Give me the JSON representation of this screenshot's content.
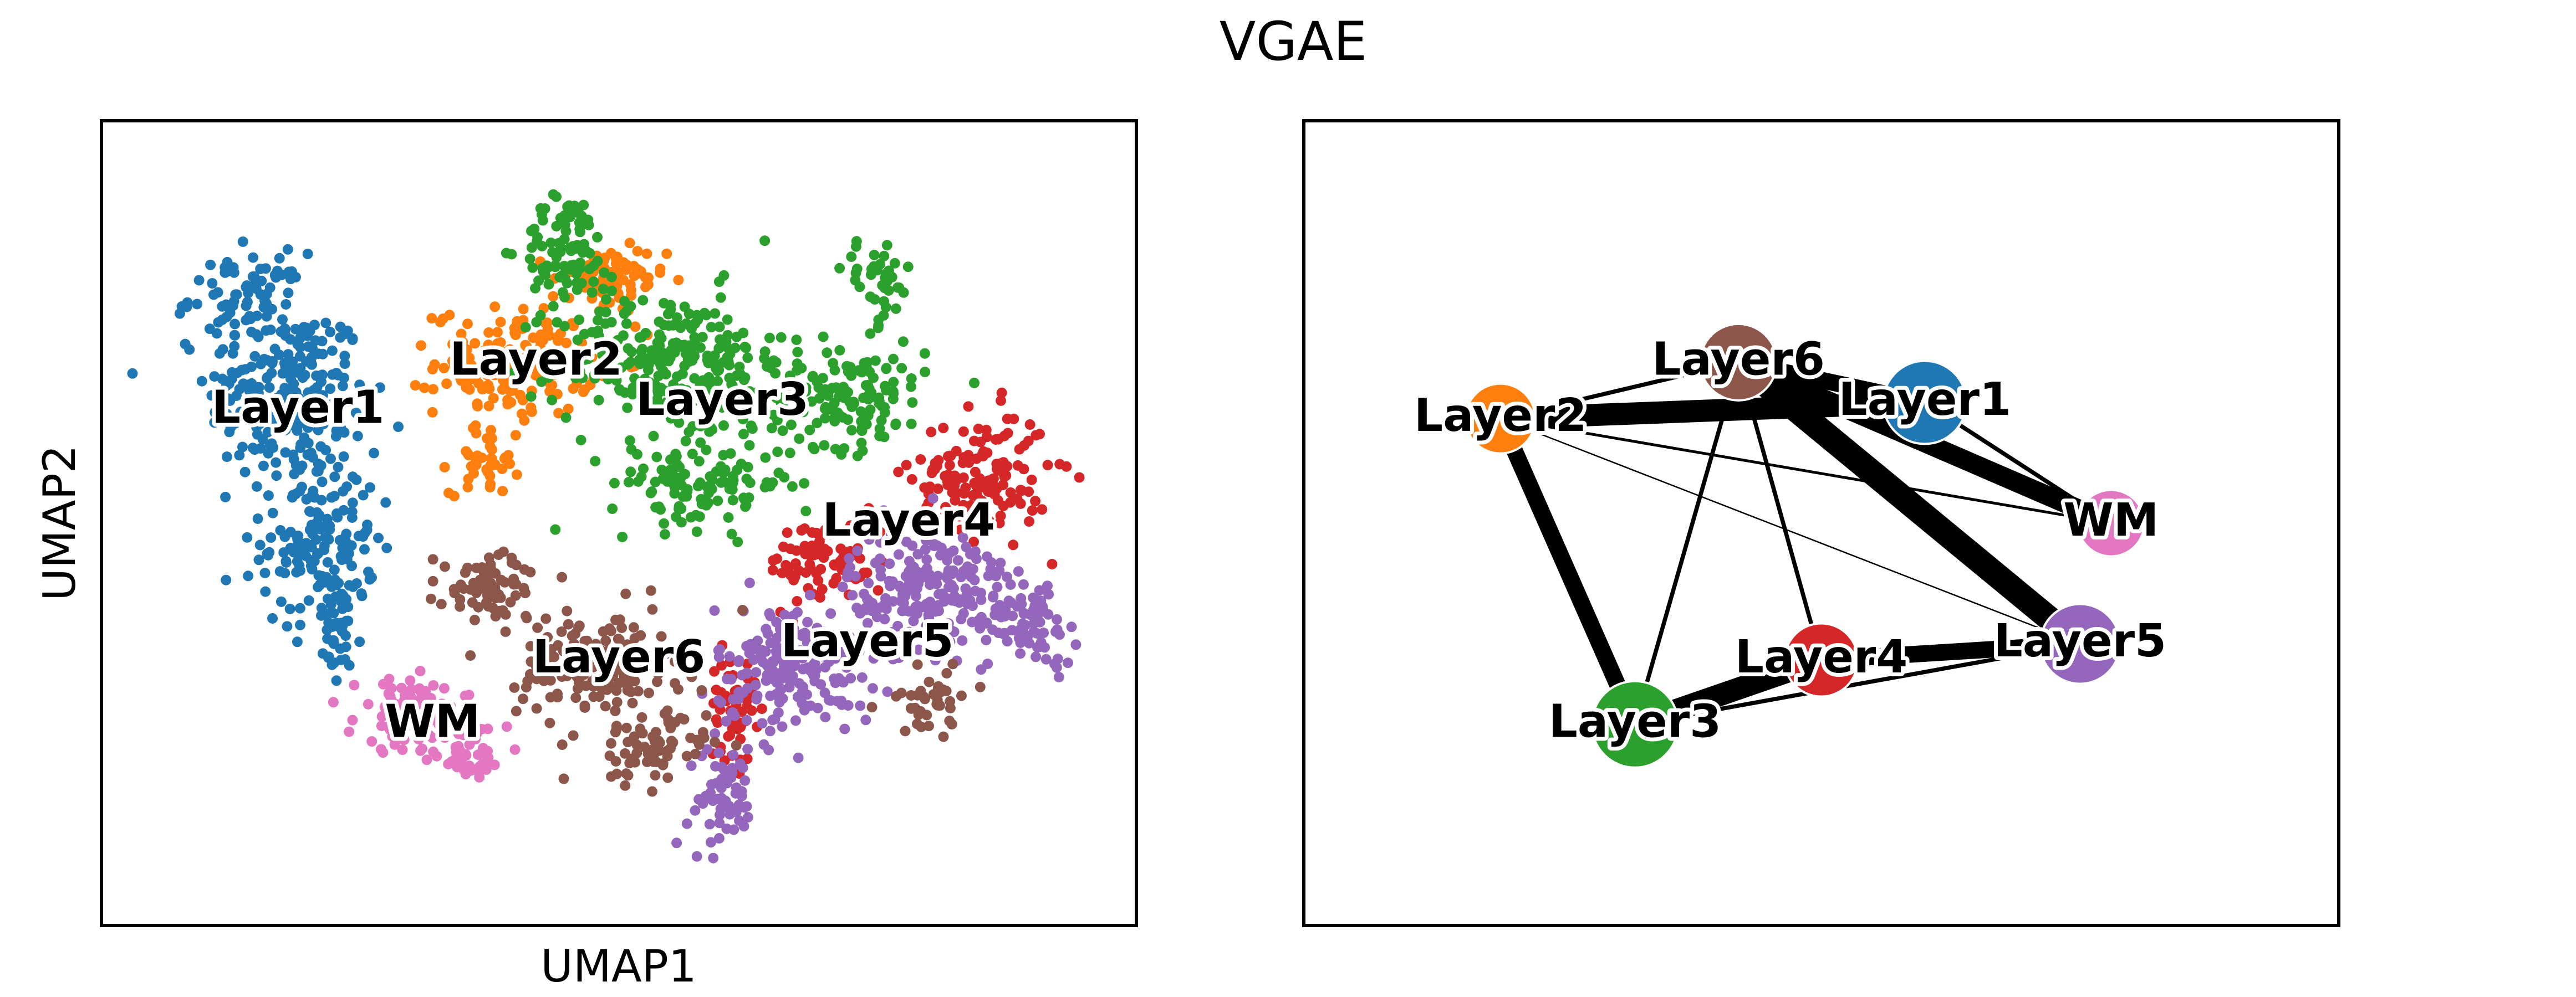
{
  "figure": {
    "title": "VGAE"
  },
  "chart_data": [
    {
      "type": "scatter",
      "xlabel": "UMAP1",
      "ylabel": "UMAP2",
      "grid": false,
      "ticks": false,
      "categories": [
        "Layer1",
        "Layer2",
        "Layer3",
        "Layer4",
        "Layer5",
        "Layer6",
        "WM"
      ],
      "colors": {
        "Layer1": "#1f77b4",
        "Layer2": "#ff7f0e",
        "Layer3": "#2ca02c",
        "Layer4": "#d62728",
        "Layer5": "#9467bd",
        "Layer6": "#8c564b",
        "WM": "#e377c2"
      },
      "cluster_labels": [
        {
          "name": "Layer1",
          "x": 0.19,
          "y": 0.64
        },
        {
          "name": "Layer2",
          "x": 0.42,
          "y": 0.7
        },
        {
          "name": "Layer3",
          "x": 0.6,
          "y": 0.65
        },
        {
          "name": "Layer4",
          "x": 0.78,
          "y": 0.5
        },
        {
          "name": "Layer5",
          "x": 0.74,
          "y": 0.35
        },
        {
          "name": "Layer6",
          "x": 0.5,
          "y": 0.33
        },
        {
          "name": "WM",
          "x": 0.32,
          "y": 0.25
        }
      ]
    },
    {
      "type": "network",
      "nodes": [
        {
          "name": "Layer2",
          "x": 0.19,
          "y": 0.63,
          "size": 0.6
        },
        {
          "name": "Layer6",
          "x": 0.42,
          "y": 0.7,
          "size": 0.8
        },
        {
          "name": "Layer1",
          "x": 0.6,
          "y": 0.65,
          "size": 1.0
        },
        {
          "name": "WM",
          "x": 0.78,
          "y": 0.5,
          "size": 0.5
        },
        {
          "name": "Layer5",
          "x": 0.75,
          "y": 0.35,
          "size": 0.9
        },
        {
          "name": "Layer4",
          "x": 0.5,
          "y": 0.33,
          "size": 0.7
        },
        {
          "name": "Layer3",
          "x": 0.32,
          "y": 0.25,
          "size": 1.1
        }
      ],
      "edges": [
        {
          "source": "Layer2",
          "target": "Layer6",
          "weight": 1.5
        },
        {
          "source": "Layer2",
          "target": "Layer1",
          "weight": 8
        },
        {
          "source": "Layer2",
          "target": "Layer3",
          "weight": 6
        },
        {
          "source": "Layer2",
          "target": "WM",
          "weight": 1
        },
        {
          "source": "Layer2",
          "target": "Layer5",
          "weight": 0.5
        },
        {
          "source": "Layer6",
          "target": "Layer1",
          "weight": 6
        },
        {
          "source": "Layer6",
          "target": "WM",
          "weight": 7
        },
        {
          "source": "Layer6",
          "target": "Layer5",
          "weight": 9
        },
        {
          "source": "Layer6",
          "target": "Layer4",
          "weight": 1.5
        },
        {
          "source": "Layer6",
          "target": "Layer3",
          "weight": 1.5
        },
        {
          "source": "Layer1",
          "target": "WM",
          "weight": 1.5
        },
        {
          "source": "Layer4",
          "target": "Layer5",
          "weight": 6
        },
        {
          "source": "Layer3",
          "target": "Layer4",
          "weight": 8
        },
        {
          "source": "Layer3",
          "target": "Layer5",
          "weight": 1.5
        }
      ]
    }
  ]
}
